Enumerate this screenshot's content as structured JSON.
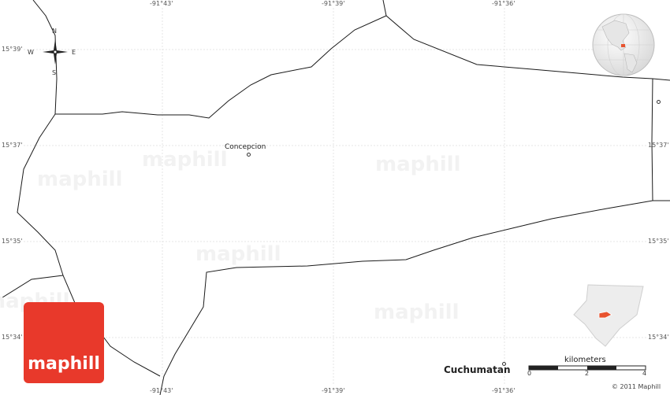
{
  "map": {
    "watermark": "maphill",
    "logo_text": "maphill",
    "copyright": "© 2011 Maphill",
    "colors": {
      "logo": "#e8392b",
      "highlight": "#e8532f",
      "graticule": "#e4e4e4",
      "boundary": "#000000"
    }
  },
  "graticule": {
    "lon_labels": [
      "-91°43'",
      "-91°39'",
      "-91°36'"
    ],
    "lat_labels": [
      "15°39'",
      "15°37'",
      "15°35'",
      "15°34'"
    ]
  },
  "compass": {
    "n": "N",
    "s": "S",
    "e": "E",
    "w": "W"
  },
  "places": {
    "concepcion": "Concepcion",
    "cuchumatan": "Cuchumatan"
  },
  "scale": {
    "title": "kilometers",
    "ticks": [
      "0",
      "2",
      "4"
    ]
  },
  "insets": {
    "globe_icon": "globe-locator-icon",
    "region_icon": "region-locator-icon"
  }
}
